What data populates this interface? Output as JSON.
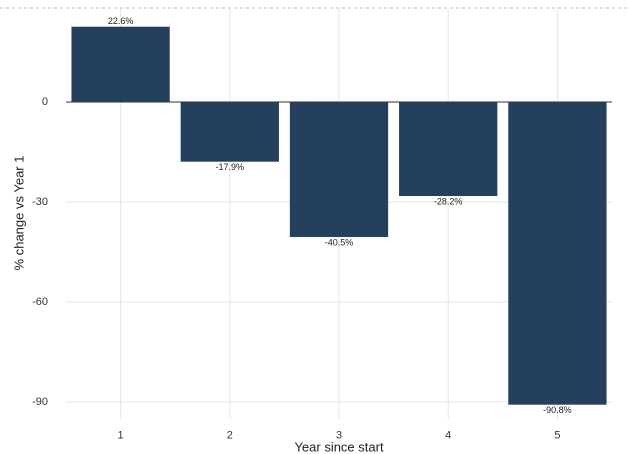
{
  "chart_data": {
    "type": "bar",
    "x_label": "Year since start",
    "y_label": "% change vs Year 1",
    "categories": [
      "1",
      "2",
      "3",
      "4",
      "5"
    ],
    "values": [
      22.6,
      -17.9,
      -40.5,
      -28.2,
      -90.8
    ],
    "value_labels": [
      "22.6%",
      "-17.9%",
      "-40.5%",
      "-28.2%",
      "-90.8%"
    ],
    "color": "#253f5f",
    "ylim": [
      -95,
      28
    ],
    "yticks": [
      0,
      -30,
      -60,
      -90
    ],
    "grid": true
  }
}
